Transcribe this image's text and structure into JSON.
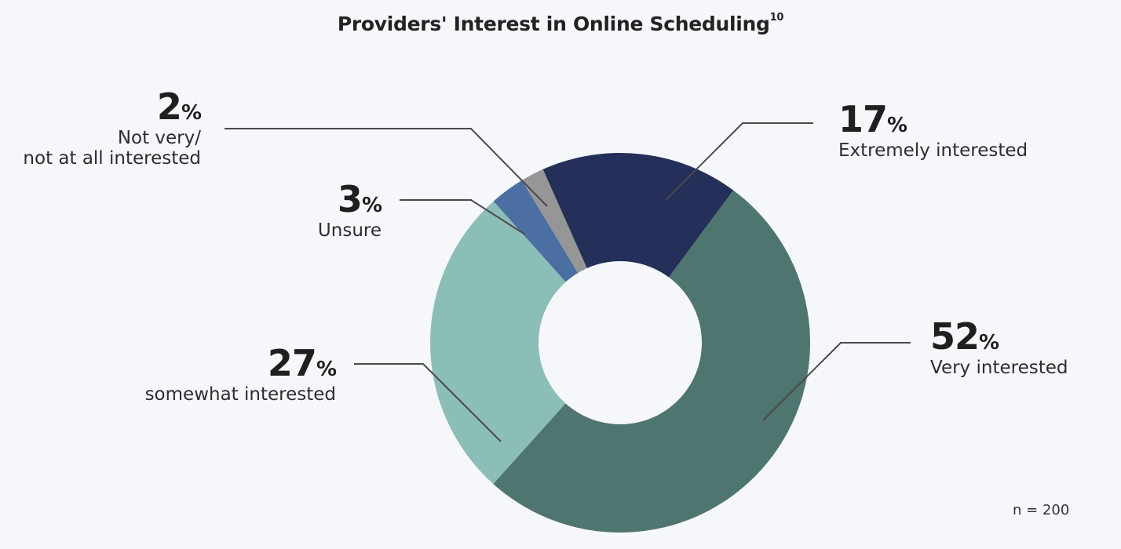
{
  "title": {
    "text": "Providers' Interest in Online Scheduling",
    "superscript": "10"
  },
  "note": "n = 200",
  "labels": {
    "extremely": {
      "pct": "17",
      "sign": "%",
      "text": "Extremely interested"
    },
    "very": {
      "pct": "52",
      "sign": "%",
      "text": "Very interested"
    },
    "somewhat": {
      "pct": "27",
      "sign": "%",
      "text": "somewhat interested"
    },
    "unsure": {
      "pct": "3",
      "sign": "%",
      "text": "Unsure"
    },
    "notvery": {
      "pct": "2",
      "sign": "%",
      "text_line1": "Not very/",
      "text_line2": "not at all interested"
    }
  },
  "chart_data": {
    "type": "pie",
    "subtype": "donut",
    "title": "Providers' Interest in Online Scheduling",
    "categories": [
      "Extremely interested",
      "Very interested",
      "somewhat interested",
      "Unsure",
      "Not very/not at all interested"
    ],
    "values": [
      17,
      52,
      27,
      3,
      2
    ],
    "unit": "%",
    "colors": [
      "#24305a",
      "#4f7570",
      "#8bbeb6",
      "#4b6ea3",
      "#969696"
    ],
    "sample_size": "n = 200",
    "legend": "none (callout labels)"
  }
}
